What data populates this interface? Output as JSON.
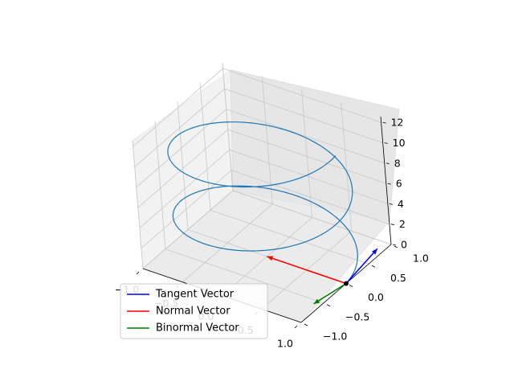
{
  "chart_data": {
    "type": "line",
    "projection": "3d",
    "title": "",
    "curve": {
      "kind": "helix",
      "x": "cos(t)",
      "y": "sin(t)",
      "z": "t",
      "t_range": [
        0,
        12.566
      ],
      "color": "#1f77b4"
    },
    "point": {
      "t": 0,
      "x": 1.0,
      "y": 0.0,
      "z": 0.0,
      "color": "#000000"
    },
    "series": [
      {
        "name": "Tangent Vector",
        "color": "#0000ff",
        "start": [
          1.0,
          0.0,
          0.0
        ],
        "vector": [
          0.0,
          0.707,
          0.707
        ]
      },
      {
        "name": "Normal Vector",
        "color": "#ff0000",
        "start": [
          1.0,
          0.0,
          0.0
        ],
        "vector": [
          -1.0,
          0.0,
          0.0
        ]
      },
      {
        "name": "Binormal Vector",
        "color": "#008000",
        "start": [
          1.0,
          0.0,
          0.0
        ],
        "vector": [
          0.0,
          -0.707,
          0.707
        ]
      }
    ],
    "xlim": [
      -1.0,
      1.0
    ],
    "ylim": [
      -1.0,
      1.0
    ],
    "zlim": [
      0,
      12.566
    ],
    "x_ticks": [
      "−1.0",
      "−0.5",
      "0.0",
      "0.5",
      "1.0"
    ],
    "y_ticks": [
      "−1.0",
      "−0.5",
      "0.0",
      "0.5",
      "1.0"
    ],
    "z_ticks": [
      "0",
      "2",
      "4",
      "6",
      "8",
      "10",
      "12"
    ],
    "grid": true,
    "legend": {
      "placement": "lower-left"
    }
  }
}
